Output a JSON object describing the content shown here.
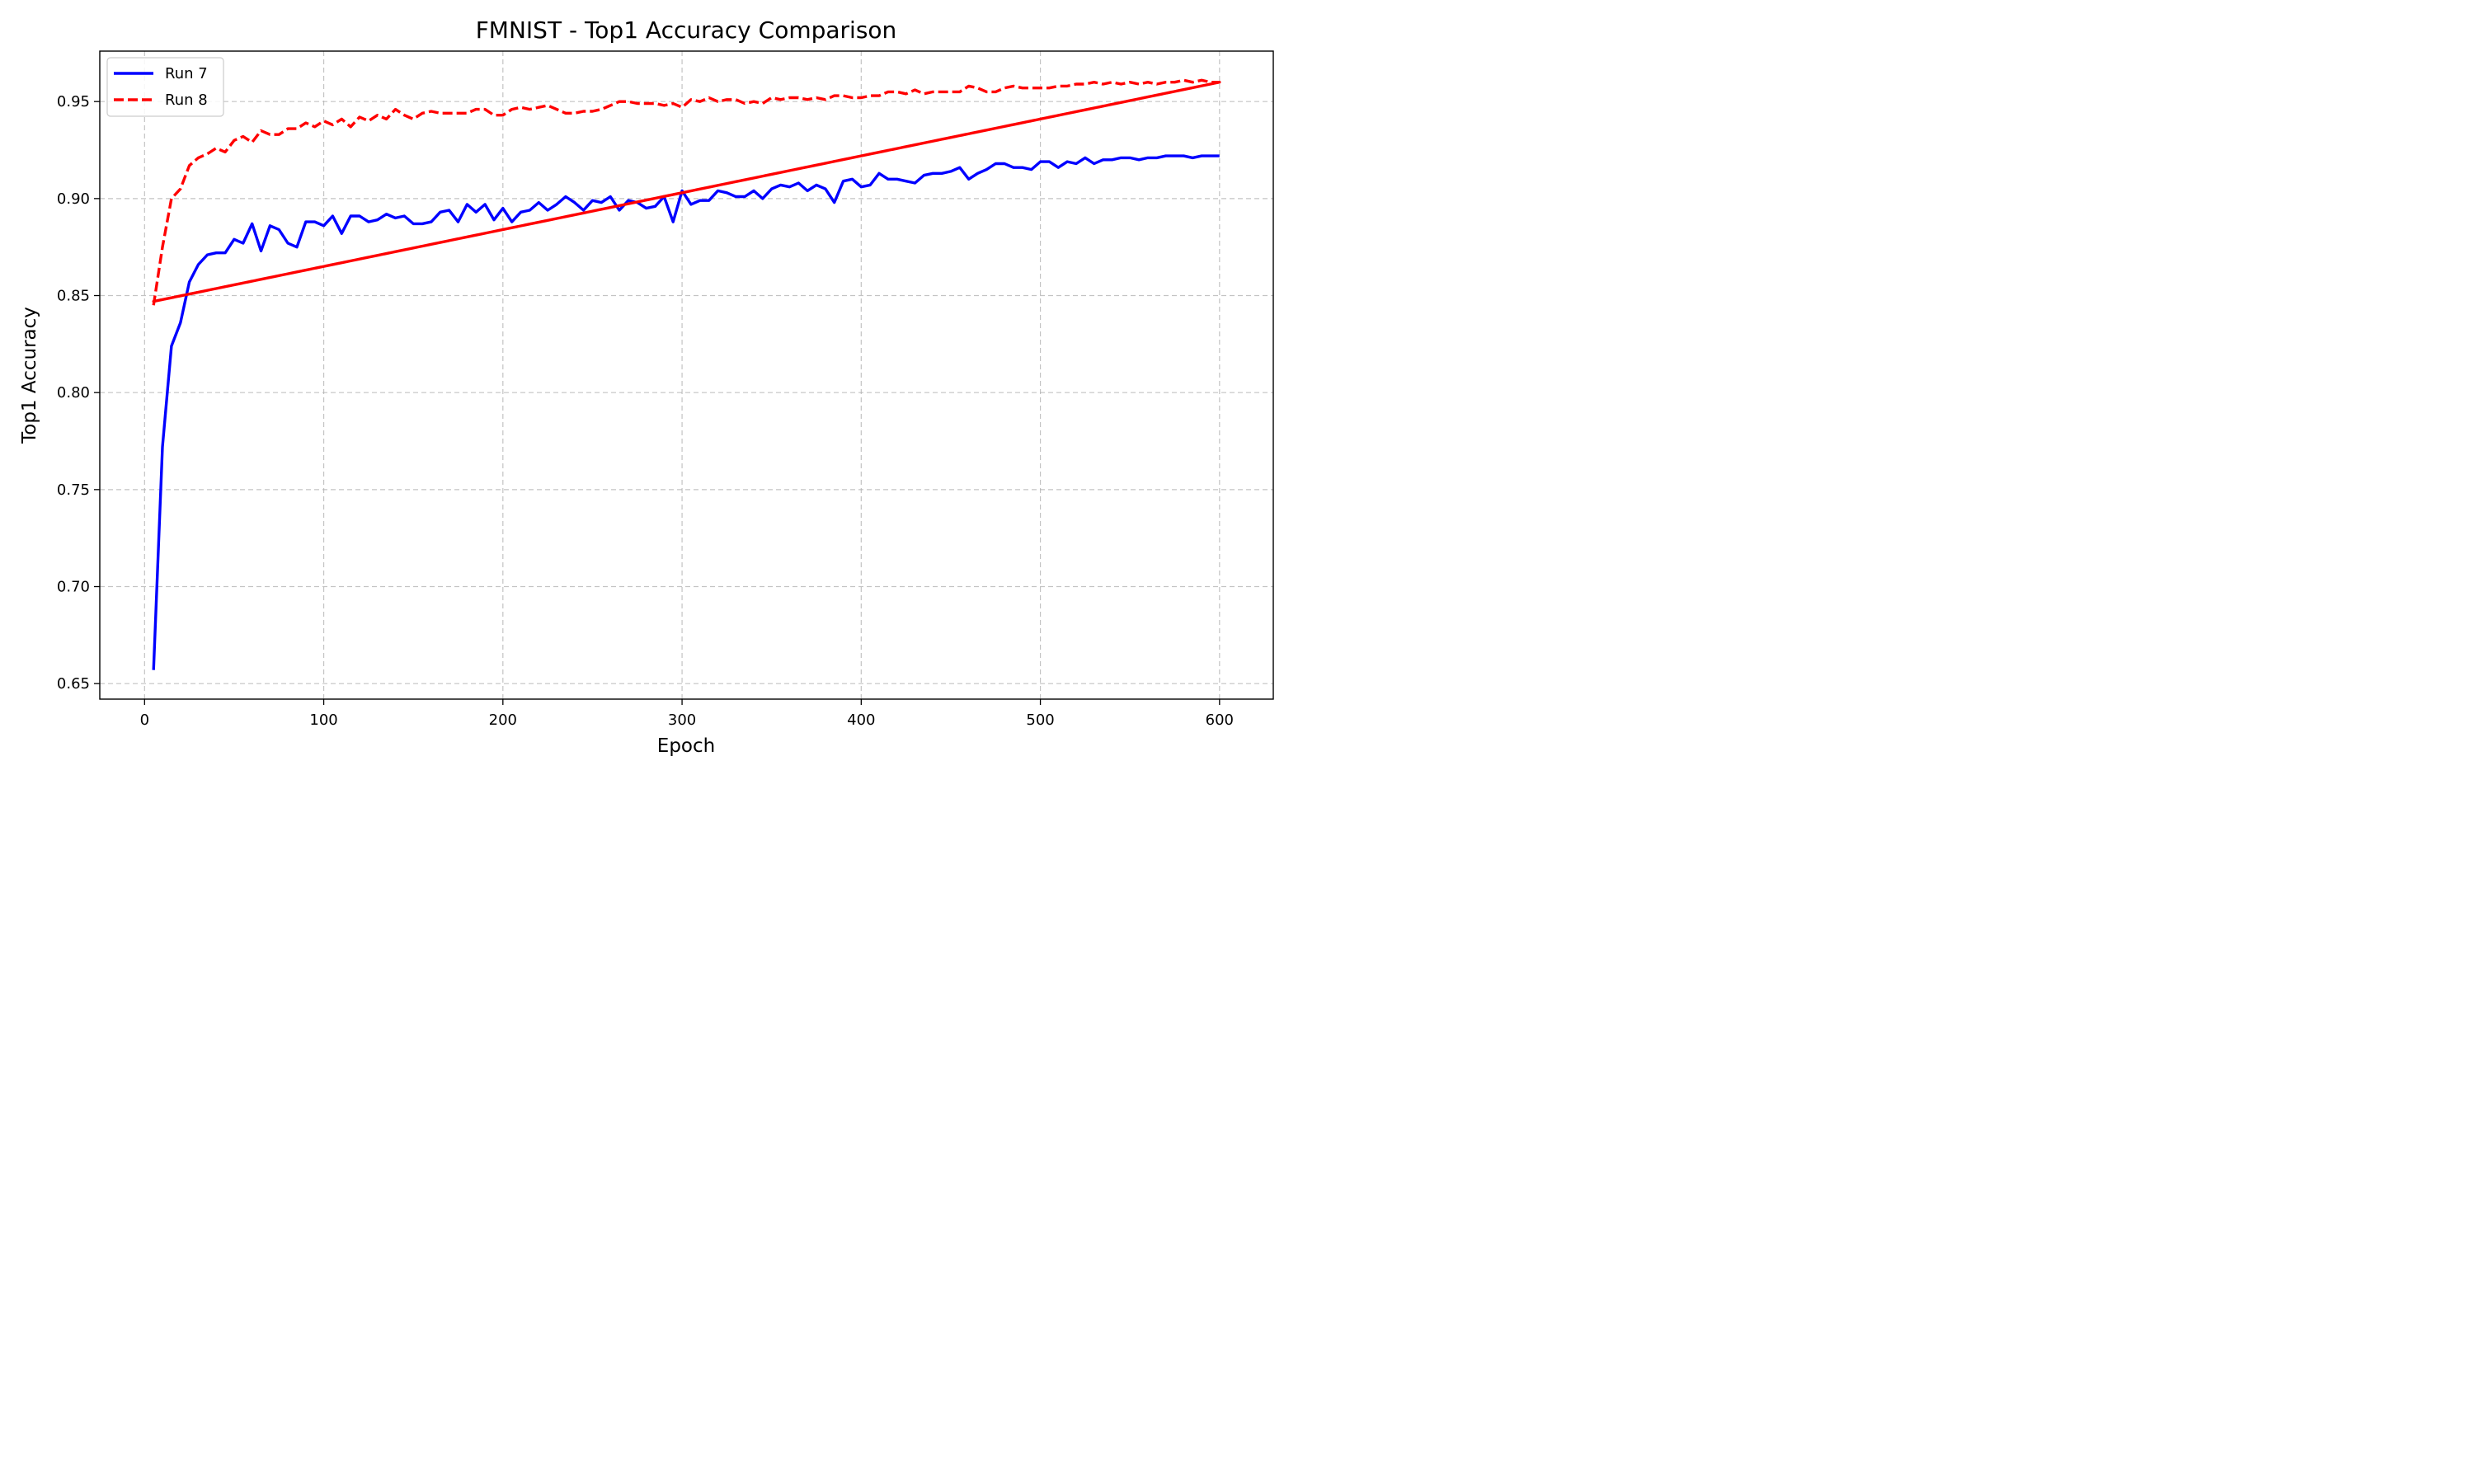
{
  "chart_data": {
    "type": "line",
    "title": "FMNIST - Top1 Accuracy Comparison",
    "xlabel": "Epoch",
    "ylabel": "Top1 Accuracy",
    "xlim": [
      -25,
      630
    ],
    "ylim": [
      0.642,
      0.976
    ],
    "x_ticks": [
      0,
      100,
      200,
      300,
      400,
      500,
      600
    ],
    "y_ticks": [
      0.65,
      0.7,
      0.75,
      0.8,
      0.85,
      0.9,
      0.95
    ],
    "y_tick_labels": [
      "0.65",
      "0.70",
      "0.75",
      "0.80",
      "0.85",
      "0.90",
      "0.95"
    ],
    "grid": true,
    "legend_position": "top-left",
    "series": [
      {
        "name": "Run 7",
        "color": "#0000ff",
        "style": "solid",
        "x": [
          5,
          10,
          15,
          20,
          25,
          30,
          35,
          40,
          45,
          50,
          55,
          60,
          65,
          70,
          75,
          80,
          85,
          90,
          95,
          100,
          105,
          110,
          115,
          120,
          125,
          130,
          135,
          140,
          145,
          150,
          155,
          160,
          165,
          170,
          175,
          180,
          185,
          190,
          195,
          200,
          205,
          210,
          215,
          220,
          225,
          230,
          235,
          240,
          245,
          250,
          255,
          260,
          265,
          270,
          275,
          280,
          285,
          290,
          295,
          300,
          305,
          310,
          315,
          320,
          325,
          330,
          335,
          340,
          345,
          350,
          355,
          360,
          365,
          370,
          375,
          380,
          385,
          390,
          395,
          400,
          405,
          410,
          415,
          420,
          425,
          430,
          435,
          440,
          445,
          450,
          455,
          460,
          465,
          470,
          475,
          480,
          485,
          490,
          495,
          500,
          505,
          510,
          515,
          520,
          525,
          530,
          535,
          540,
          545,
          550,
          555,
          560,
          565,
          570,
          575,
          580,
          585,
          590,
          595,
          600
        ],
        "y": [
          0.657,
          0.772,
          0.824,
          0.836,
          0.857,
          0.866,
          0.871,
          0.872,
          0.872,
          0.879,
          0.877,
          0.887,
          0.873,
          0.886,
          0.884,
          0.877,
          0.875,
          0.888,
          0.888,
          0.886,
          0.891,
          0.882,
          0.891,
          0.891,
          0.888,
          0.889,
          0.892,
          0.89,
          0.891,
          0.887,
          0.887,
          0.888,
          0.893,
          0.894,
          0.888,
          0.897,
          0.893,
          0.897,
          0.889,
          0.895,
          0.888,
          0.893,
          0.894,
          0.898,
          0.894,
          0.897,
          0.901,
          0.898,
          0.894,
          0.899,
          0.898,
          0.901,
          0.894,
          0.899,
          0.898,
          0.895,
          0.896,
          0.901,
          0.888,
          0.904,
          0.897,
          0.899,
          0.899,
          0.904,
          0.903,
          0.901,
          0.901,
          0.904,
          0.9,
          0.905,
          0.907,
          0.906,
          0.908,
          0.904,
          0.907,
          0.905,
          0.898,
          0.909,
          0.91,
          0.906,
          0.907,
          0.913,
          0.91,
          0.91,
          0.909,
          0.908,
          0.912,
          0.913,
          0.913,
          0.914,
          0.916,
          0.91,
          0.913,
          0.915,
          0.918,
          0.918,
          0.916,
          0.916,
          0.915,
          0.919,
          0.919,
          0.916,
          0.919,
          0.918,
          0.921,
          0.918,
          0.92,
          0.92,
          0.921,
          0.921,
          0.92,
          0.921,
          0.921,
          0.922,
          0.922,
          0.922,
          0.921,
          0.922,
          0.922,
          0.922
        ]
      },
      {
        "name": "Run 8",
        "color": "#ff0000",
        "style": "dashed",
        "x": [
          5,
          10,
          15,
          20,
          25,
          30,
          35,
          40,
          45,
          50,
          55,
          60,
          65,
          70,
          75,
          80,
          85,
          90,
          95,
          100,
          105,
          110,
          115,
          120,
          125,
          130,
          135,
          140,
          145,
          150,
          155,
          160,
          165,
          170,
          175,
          180,
          185,
          190,
          195,
          200,
          205,
          210,
          215,
          220,
          225,
          230,
          235,
          240,
          245,
          250,
          255,
          260,
          265,
          270,
          275,
          280,
          285,
          290,
          295,
          300,
          305,
          310,
          315,
          320,
          325,
          330,
          335,
          340,
          345,
          350,
          355,
          360,
          365,
          370,
          375,
          380,
          385,
          390,
          395,
          400,
          405,
          410,
          415,
          420,
          425,
          430,
          435,
          440,
          445,
          450,
          455,
          460,
          465,
          470,
          475,
          480,
          485,
          490,
          495,
          500,
          505,
          510,
          515,
          520,
          525,
          530,
          535,
          540,
          545,
          550,
          555,
          560,
          565,
          570,
          575,
          580,
          585,
          590,
          595,
          600,
          5,
          600
        ],
        "y": [
          0.845,
          0.875,
          0.9,
          0.905,
          0.917,
          0.921,
          0.923,
          0.926,
          0.924,
          0.93,
          0.932,
          0.929,
          0.935,
          0.933,
          0.933,
          0.936,
          0.936,
          0.939,
          0.937,
          0.94,
          0.938,
          0.941,
          0.937,
          0.942,
          0.94,
          0.943,
          0.941,
          0.946,
          0.943,
          0.941,
          0.944,
          0.945,
          0.944,
          0.944,
          0.944,
          0.944,
          0.946,
          0.946,
          0.943,
          0.943,
          0.946,
          0.947,
          0.946,
          0.947,
          0.948,
          0.946,
          0.944,
          0.944,
          0.945,
          0.945,
          0.946,
          0.948,
          0.95,
          0.95,
          0.949,
          0.949,
          0.949,
          0.948,
          0.949,
          0.947,
          0.951,
          0.95,
          0.952,
          0.95,
          0.951,
          0.951,
          0.949,
          0.95,
          0.949,
          0.952,
          0.951,
          0.952,
          0.952,
          0.951,
          0.952,
          0.951,
          0.953,
          0.953,
          0.952,
          0.952,
          0.953,
          0.953,
          0.955,
          0.955,
          0.954,
          0.956,
          0.954,
          0.955,
          0.955,
          0.955,
          0.955,
          0.958,
          0.957,
          0.955,
          0.955,
          0.957,
          0.958,
          0.957,
          0.957,
          0.957,
          0.957,
          0.958,
          0.958,
          0.959,
          0.959,
          0.96,
          0.959,
          0.96,
          0.959,
          0.96,
          0.959,
          0.96,
          0.959,
          0.96,
          0.96,
          0.961,
          0.96,
          0.961,
          0.96,
          0.96,
          0.847,
          0.96
        ]
      }
    ]
  }
}
